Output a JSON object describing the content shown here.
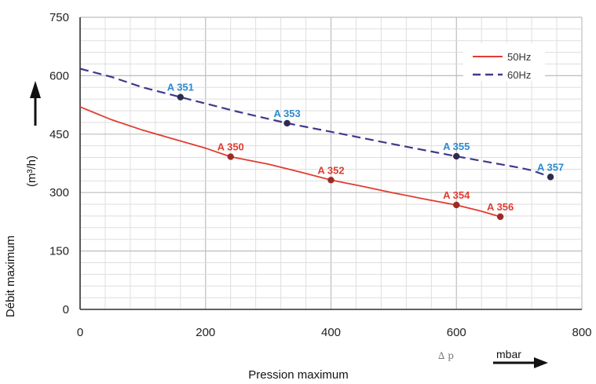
{
  "chart_data": {
    "type": "line",
    "title": "",
    "xlabel": "Pression maximum",
    "ylabel": "Débit maximum",
    "yunit": "(m³/h)",
    "xunit": "mbar",
    "xsymbol": "∆ p",
    "xlim": [
      0,
      800
    ],
    "ylim": [
      0,
      750
    ],
    "xticks": [
      "0",
      "200",
      "400",
      "600",
      "800"
    ],
    "yticks": [
      "0",
      "150",
      "300",
      "450",
      "600",
      "750"
    ],
    "grid": true,
    "legend_position": "top-right",
    "series": [
      {
        "name": "50Hz",
        "color": "#e03c31",
        "label_color": "#e03c31",
        "style": "solid",
        "x": [
          0,
          50,
          100,
          150,
          200,
          240,
          300,
          350,
          400,
          450,
          500,
          550,
          600,
          640,
          670
        ],
        "y": [
          520,
          487,
          460,
          437,
          414,
          392,
          373,
          353,
          332,
          316,
          299,
          283,
          268,
          252,
          238
        ],
        "points": [
          {
            "label": "A 350",
            "x": 240,
            "y": 392
          },
          {
            "label": "A 352",
            "x": 400,
            "y": 332
          },
          {
            "label": "A 354",
            "x": 600,
            "y": 268
          },
          {
            "label": "A 356",
            "x": 670,
            "y": 238
          }
        ]
      },
      {
        "name": "60Hz",
        "color": "#3d3a8c",
        "label_color": "#2a8ad0",
        "style": "dashed",
        "x": [
          0,
          50,
          100,
          160,
          250,
          330,
          400,
          500,
          600,
          700,
          720,
          750
        ],
        "y": [
          618,
          597,
          570,
          545,
          508,
          478,
          456,
          424,
          393,
          364,
          357,
          340
        ],
        "points": [
          {
            "label": "A 351",
            "x": 160,
            "y": 545
          },
          {
            "label": "A 353",
            "x": 330,
            "y": 478
          },
          {
            "label": "A 355",
            "x": 600,
            "y": 393
          },
          {
            "label": "A 357",
            "x": 750,
            "y": 340
          }
        ]
      }
    ]
  }
}
